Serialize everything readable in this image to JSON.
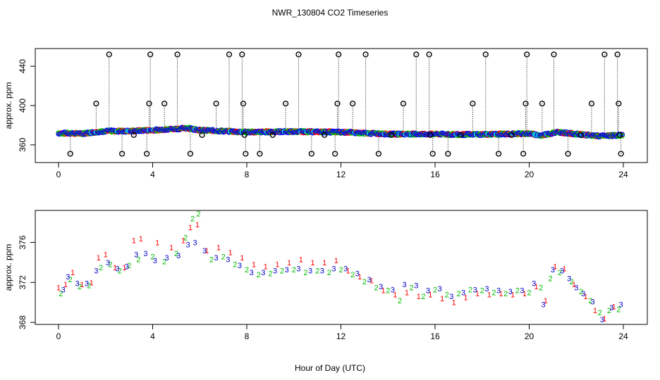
{
  "chart_data": [
    {
      "type": "scatter",
      "title": "NWR_130804  CO2 Timeseries",
      "xlabel": "",
      "ylabel": "approx. ppm",
      "xlim": [
        0,
        24
      ],
      "ylim": [
        342,
        458
      ],
      "xticks": [
        0,
        4,
        8,
        12,
        16,
        20,
        24
      ],
      "yticks": [
        360,
        400,
        440
      ],
      "description_values": {
        "series_colors": [
          "#ff0000",
          "#00cc00",
          "#0000ff",
          "#00ffff"
        ],
        "baseline_trend": [
          {
            "x": 0.0,
            "y": 372
          },
          {
            "x": 1.0,
            "y": 371.5
          },
          {
            "x": 2.0,
            "y": 374
          },
          {
            "x": 3.0,
            "y": 374
          },
          {
            "x": 4.0,
            "y": 375
          },
          {
            "x": 5.5,
            "y": 377
          },
          {
            "x": 6.0,
            "y": 375
          },
          {
            "x": 8.0,
            "y": 373
          },
          {
            "x": 10.0,
            "y": 373.5
          },
          {
            "x": 12.0,
            "y": 373
          },
          {
            "x": 14.0,
            "y": 371
          },
          {
            "x": 16.0,
            "y": 371
          },
          {
            "x": 17.0,
            "y": 370.5
          },
          {
            "x": 19.0,
            "y": 371
          },
          {
            "x": 20.0,
            "y": 371.5
          },
          {
            "x": 20.5,
            "y": 369.5
          },
          {
            "x": 21.2,
            "y": 373
          },
          {
            "x": 22.0,
            "y": 371
          },
          {
            "x": 23.0,
            "y": 369
          },
          {
            "x": 24.0,
            "y": 370
          }
        ]
      },
      "outliers": [
        {
          "x": 0.5,
          "y": 351
        },
        {
          "x": 1.6,
          "y": 402
        },
        {
          "x": 2.15,
          "y": 452
        },
        {
          "x": 2.7,
          "y": 351
        },
        {
          "x": 3.2,
          "y": 370
        },
        {
          "x": 3.75,
          "y": 351
        },
        {
          "x": 3.85,
          "y": 402
        },
        {
          "x": 3.9,
          "y": 452
        },
        {
          "x": 4.5,
          "y": 402
        },
        {
          "x": 5.05,
          "y": 452
        },
        {
          "x": 5.6,
          "y": 351
        },
        {
          "x": 6.1,
          "y": 370
        },
        {
          "x": 6.7,
          "y": 402
        },
        {
          "x": 7.25,
          "y": 452
        },
        {
          "x": 7.8,
          "y": 452
        },
        {
          "x": 7.85,
          "y": 402
        },
        {
          "x": 7.9,
          "y": 370
        },
        {
          "x": 7.95,
          "y": 351
        },
        {
          "x": 8.55,
          "y": 351
        },
        {
          "x": 9.1,
          "y": 370
        },
        {
          "x": 9.65,
          "y": 402
        },
        {
          "x": 10.2,
          "y": 452
        },
        {
          "x": 10.75,
          "y": 351
        },
        {
          "x": 11.3,
          "y": 370
        },
        {
          "x": 11.75,
          "y": 351
        },
        {
          "x": 11.85,
          "y": 402
        },
        {
          "x": 11.9,
          "y": 452
        },
        {
          "x": 12.5,
          "y": 402
        },
        {
          "x": 13.05,
          "y": 452
        },
        {
          "x": 13.6,
          "y": 351
        },
        {
          "x": 14.15,
          "y": 370
        },
        {
          "x": 14.65,
          "y": 402
        },
        {
          "x": 15.2,
          "y": 452
        },
        {
          "x": 15.75,
          "y": 452
        },
        {
          "x": 15.8,
          "y": 370
        },
        {
          "x": 15.9,
          "y": 351
        },
        {
          "x": 16.55,
          "y": 351
        },
        {
          "x": 17.1,
          "y": 370
        },
        {
          "x": 17.6,
          "y": 402
        },
        {
          "x": 18.15,
          "y": 452
        },
        {
          "x": 18.7,
          "y": 351
        },
        {
          "x": 19.25,
          "y": 370
        },
        {
          "x": 19.75,
          "y": 351
        },
        {
          "x": 19.85,
          "y": 402
        },
        {
          "x": 19.9,
          "y": 452
        },
        {
          "x": 20.55,
          "y": 402
        },
        {
          "x": 21.05,
          "y": 452
        },
        {
          "x": 21.65,
          "y": 351
        },
        {
          "x": 22.2,
          "y": 370
        },
        {
          "x": 22.65,
          "y": 402
        },
        {
          "x": 23.2,
          "y": 452
        },
        {
          "x": 23.75,
          "y": 452
        },
        {
          "x": 23.8,
          "y": 402
        },
        {
          "x": 23.85,
          "y": 370
        },
        {
          "x": 23.9,
          "y": 351
        }
      ]
    },
    {
      "type": "scatter",
      "title": "",
      "xlabel": "Hour of Day (UTC)",
      "ylabel": "approx. ppm",
      "xlim": [
        0,
        24
      ],
      "ylim": [
        367.8,
        379.2
      ],
      "xticks": [
        0,
        4,
        8,
        12,
        16,
        20,
        24
      ],
      "yticks": [
        368,
        372,
        376
      ],
      "marker_labels": [
        "1",
        "2",
        "3"
      ],
      "series": [
        {
          "name": "1",
          "color": "#ff0000",
          "points": [
            {
              "x": 0.0,
              "y": 371.5
            },
            {
              "x": 0.3,
              "y": 371.8
            },
            {
              "x": 0.6,
              "y": 373.0
            },
            {
              "x": 1.0,
              "y": 371.8
            },
            {
              "x": 1.4,
              "y": 372.0
            },
            {
              "x": 1.7,
              "y": 374.5
            },
            {
              "x": 2.0,
              "y": 374.8
            },
            {
              "x": 2.4,
              "y": 373.5
            },
            {
              "x": 2.8,
              "y": 373.5
            },
            {
              "x": 3.2,
              "y": 376.2
            },
            {
              "x": 3.5,
              "y": 376.4
            },
            {
              "x": 4.2,
              "y": 376.0
            },
            {
              "x": 4.8,
              "y": 375.5
            },
            {
              "x": 5.3,
              "y": 376.2
            },
            {
              "x": 5.6,
              "y": 377.5
            },
            {
              "x": 5.9,
              "y": 377.8
            },
            {
              "x": 6.3,
              "y": 375.2
            },
            {
              "x": 6.8,
              "y": 375.5
            },
            {
              "x": 7.3,
              "y": 375.0
            },
            {
              "x": 7.8,
              "y": 374.5
            },
            {
              "x": 8.3,
              "y": 373.8
            },
            {
              "x": 8.8,
              "y": 373.6
            },
            {
              "x": 9.3,
              "y": 373.8
            },
            {
              "x": 9.8,
              "y": 374.0
            },
            {
              "x": 10.3,
              "y": 374.3
            },
            {
              "x": 10.8,
              "y": 374.0
            },
            {
              "x": 11.3,
              "y": 374.0
            },
            {
              "x": 11.8,
              "y": 374.2
            },
            {
              "x": 12.3,
              "y": 373.2
            },
            {
              "x": 12.8,
              "y": 372.6
            },
            {
              "x": 13.3,
              "y": 372.2
            },
            {
              "x": 13.8,
              "y": 371.2
            },
            {
              "x": 14.3,
              "y": 370.8
            },
            {
              "x": 14.8,
              "y": 371.0
            },
            {
              "x": 15.3,
              "y": 370.6
            },
            {
              "x": 15.8,
              "y": 370.8
            },
            {
              "x": 16.3,
              "y": 370.4
            },
            {
              "x": 16.8,
              "y": 370.0
            },
            {
              "x": 17.3,
              "y": 370.5
            },
            {
              "x": 17.8,
              "y": 370.9
            },
            {
              "x": 18.3,
              "y": 370.8
            },
            {
              "x": 18.8,
              "y": 370.9
            },
            {
              "x": 19.3,
              "y": 370.8
            },
            {
              "x": 19.8,
              "y": 370.9
            },
            {
              "x": 20.3,
              "y": 371.6
            },
            {
              "x": 20.7,
              "y": 370.2
            },
            {
              "x": 21.1,
              "y": 373.6
            },
            {
              "x": 21.5,
              "y": 373.4
            },
            {
              "x": 21.9,
              "y": 371.8
            },
            {
              "x": 22.4,
              "y": 370.6
            },
            {
              "x": 22.8,
              "y": 369.2
            },
            {
              "x": 23.2,
              "y": 368.4
            },
            {
              "x": 23.6,
              "y": 369.6
            }
          ]
        },
        {
          "name": "2",
          "color": "#00bb00",
          "points": [
            {
              "x": 0.1,
              "y": 370.9
            },
            {
              "x": 0.5,
              "y": 372.3
            },
            {
              "x": 0.9,
              "y": 371.6
            },
            {
              "x": 1.3,
              "y": 371.7
            },
            {
              "x": 1.8,
              "y": 373.5
            },
            {
              "x": 2.2,
              "y": 373.8
            },
            {
              "x": 2.6,
              "y": 373.2
            },
            {
              "x": 3.0,
              "y": 373.7
            },
            {
              "x": 3.4,
              "y": 374.3
            },
            {
              "x": 4.0,
              "y": 374.6
            },
            {
              "x": 4.5,
              "y": 374.1
            },
            {
              "x": 5.0,
              "y": 374.9
            },
            {
              "x": 5.4,
              "y": 376.5
            },
            {
              "x": 5.7,
              "y": 378.4
            },
            {
              "x": 5.95,
              "y": 378.9
            },
            {
              "x": 6.5,
              "y": 374.3
            },
            {
              "x": 7.0,
              "y": 374.6
            },
            {
              "x": 7.5,
              "y": 373.8
            },
            {
              "x": 8.0,
              "y": 373.3
            },
            {
              "x": 8.5,
              "y": 372.8
            },
            {
              "x": 9.0,
              "y": 372.9
            },
            {
              "x": 9.5,
              "y": 373.2
            },
            {
              "x": 10.0,
              "y": 373.3
            },
            {
              "x": 10.5,
              "y": 373.0
            },
            {
              "x": 11.0,
              "y": 373.2
            },
            {
              "x": 11.5,
              "y": 373.0
            },
            {
              "x": 12.0,
              "y": 373.3
            },
            {
              "x": 12.5,
              "y": 372.8
            },
            {
              "x": 13.0,
              "y": 372.1
            },
            {
              "x": 13.5,
              "y": 371.5
            },
            {
              "x": 14.0,
              "y": 371.2
            },
            {
              "x": 14.5,
              "y": 370.2
            },
            {
              "x": 15.0,
              "y": 371.5
            },
            {
              "x": 15.5,
              "y": 370.6
            },
            {
              "x": 16.0,
              "y": 371.3
            },
            {
              "x": 16.5,
              "y": 370.8
            },
            {
              "x": 17.0,
              "y": 370.9
            },
            {
              "x": 17.5,
              "y": 371.3
            },
            {
              "x": 18.0,
              "y": 371.2
            },
            {
              "x": 18.5,
              "y": 371.0
            },
            {
              "x": 19.0,
              "y": 370.9
            },
            {
              "x": 19.5,
              "y": 371.2
            },
            {
              "x": 20.0,
              "y": 371.0
            },
            {
              "x": 20.5,
              "y": 371.5
            },
            {
              "x": 20.9,
              "y": 372.4
            },
            {
              "x": 21.3,
              "y": 373.0
            },
            {
              "x": 21.8,
              "y": 372.1
            },
            {
              "x": 22.2,
              "y": 371.1
            },
            {
              "x": 22.6,
              "y": 370.2
            },
            {
              "x": 23.0,
              "y": 369.0
            },
            {
              "x": 23.4,
              "y": 369.2
            },
            {
              "x": 23.8,
              "y": 369.3
            }
          ]
        },
        {
          "name": "3",
          "color": "#0000cc",
          "points": [
            {
              "x": 0.2,
              "y": 371.3
            },
            {
              "x": 0.4,
              "y": 372.6
            },
            {
              "x": 0.8,
              "y": 371.9
            },
            {
              "x": 1.2,
              "y": 371.9
            },
            {
              "x": 1.6,
              "y": 373.2
            },
            {
              "x": 2.1,
              "y": 374.0
            },
            {
              "x": 2.5,
              "y": 373.4
            },
            {
              "x": 2.9,
              "y": 373.6
            },
            {
              "x": 3.3,
              "y": 374.8
            },
            {
              "x": 3.7,
              "y": 374.9
            },
            {
              "x": 4.1,
              "y": 374.2
            },
            {
              "x": 4.6,
              "y": 374.5
            },
            {
              "x": 5.1,
              "y": 374.7
            },
            {
              "x": 5.5,
              "y": 375.8
            },
            {
              "x": 5.8,
              "y": 376.0
            },
            {
              "x": 6.2,
              "y": 375.2
            },
            {
              "x": 6.7,
              "y": 374.5
            },
            {
              "x": 7.2,
              "y": 374.3
            },
            {
              "x": 7.7,
              "y": 373.7
            },
            {
              "x": 8.2,
              "y": 373.0
            },
            {
              "x": 8.7,
              "y": 373.0
            },
            {
              "x": 9.2,
              "y": 373.2
            },
            {
              "x": 9.7,
              "y": 373.3
            },
            {
              "x": 10.2,
              "y": 373.4
            },
            {
              "x": 10.7,
              "y": 373.2
            },
            {
              "x": 11.2,
              "y": 373.2
            },
            {
              "x": 11.7,
              "y": 373.4
            },
            {
              "x": 12.2,
              "y": 373.4
            },
            {
              "x": 12.7,
              "y": 372.9
            },
            {
              "x": 13.2,
              "y": 372.3
            },
            {
              "x": 13.7,
              "y": 371.6
            },
            {
              "x": 14.2,
              "y": 371.3
            },
            {
              "x": 14.7,
              "y": 371.8
            },
            {
              "x": 15.2,
              "y": 371.7
            },
            {
              "x": 15.7,
              "y": 371.2
            },
            {
              "x": 16.2,
              "y": 371.4
            },
            {
              "x": 16.7,
              "y": 370.6
            },
            {
              "x": 17.2,
              "y": 371.0
            },
            {
              "x": 17.7,
              "y": 371.3
            },
            {
              "x": 18.2,
              "y": 371.4
            },
            {
              "x": 18.7,
              "y": 371.2
            },
            {
              "x": 19.2,
              "y": 371.1
            },
            {
              "x": 19.7,
              "y": 371.2
            },
            {
              "x": 20.2,
              "y": 371.9
            },
            {
              "x": 20.6,
              "y": 369.8
            },
            {
              "x": 21.0,
              "y": 373.3
            },
            {
              "x": 21.4,
              "y": 373.2
            },
            {
              "x": 21.7,
              "y": 372.4
            },
            {
              "x": 22.0,
              "y": 371.5
            },
            {
              "x": 22.3,
              "y": 370.9
            },
            {
              "x": 22.7,
              "y": 370.1
            },
            {
              "x": 23.1,
              "y": 368.3
            },
            {
              "x": 23.5,
              "y": 369.5
            },
            {
              "x": 23.9,
              "y": 369.8
            }
          ]
        }
      ]
    }
  ]
}
